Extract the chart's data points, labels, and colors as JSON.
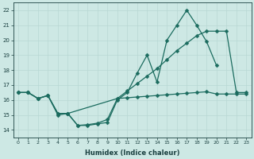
{
  "xlabel": "Humidex (Indice chaleur)",
  "bg_color": "#cde8e4",
  "grid_color": "#b8d8d4",
  "line_color": "#1a6b5e",
  "xlim": [
    -0.5,
    23.5
  ],
  "ylim": [
    13.5,
    22.5
  ],
  "lineA_x": [
    0,
    1,
    2,
    3,
    4,
    5,
    6,
    7,
    8,
    9,
    10,
    11,
    12,
    13,
    14,
    15,
    16,
    17,
    18,
    19,
    20
  ],
  "lineA_y": [
    16.5,
    16.5,
    16.1,
    16.3,
    15.0,
    15.1,
    14.3,
    14.3,
    14.4,
    14.5,
    16.0,
    16.5,
    17.8,
    19.0,
    17.2,
    20.0,
    21.0,
    22.0,
    21.0,
    19.9,
    18.3
  ],
  "lineB_x": [
    0,
    1,
    2,
    3,
    4,
    5,
    10,
    11,
    12,
    13,
    14,
    15,
    16,
    17,
    18,
    19,
    20,
    21,
    22,
    23
  ],
  "lineB_y": [
    16.5,
    16.5,
    16.1,
    16.3,
    15.1,
    15.1,
    16.1,
    16.6,
    17.1,
    17.6,
    18.1,
    18.7,
    19.3,
    19.8,
    20.3,
    20.6,
    20.6,
    20.6,
    16.5,
    16.5
  ],
  "lineC_x": [
    0,
    1,
    2,
    3,
    4,
    5,
    6,
    7,
    8,
    9,
    10,
    11,
    12,
    13,
    14,
    15,
    16,
    17,
    18,
    19,
    20,
    21,
    22,
    23
  ],
  "lineC_y": [
    16.5,
    16.5,
    16.1,
    16.3,
    15.1,
    15.1,
    14.3,
    14.35,
    14.45,
    14.7,
    16.1,
    16.15,
    16.2,
    16.25,
    16.3,
    16.35,
    16.4,
    16.45,
    16.5,
    16.55,
    16.4,
    16.4,
    16.4,
    16.4
  ]
}
